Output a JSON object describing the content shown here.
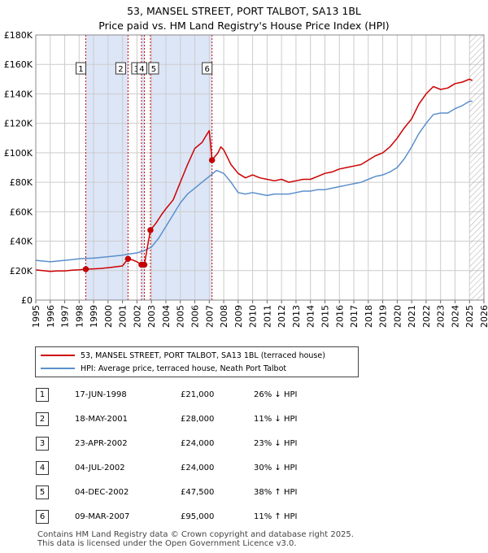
{
  "title_line1": "53, MANSEL STREET, PORT TALBOT, SA13 1BL",
  "title_line2": "Price paid vs. HM Land Registry's House Price Index (HPI)",
  "legend": {
    "property": "53, MANSEL STREET, PORT TALBOT, SA13 1BL (terraced house)",
    "hpi": "HPI: Average price, terraced house, Neath Port Talbot"
  },
  "colors": {
    "property": "#cc0000",
    "hpi": "#5b8fcc",
    "band": "#dde6f7",
    "grid": "#cccccc",
    "hatch": "#999999"
  },
  "sales": [
    {
      "num": "1",
      "date": "17-JUN-1998",
      "price": "£21,000",
      "hpi": "26% ↓ HPI"
    },
    {
      "num": "2",
      "date": "18-MAY-2001",
      "price": "£28,000",
      "hpi": "11% ↓ HPI"
    },
    {
      "num": "3",
      "date": "23-APR-2002",
      "price": "£24,000",
      "hpi": "23% ↓ HPI"
    },
    {
      "num": "4",
      "date": "04-JUL-2002",
      "price": "£24,000",
      "hpi": "30% ↓ HPI"
    },
    {
      "num": "5",
      "date": "04-DEC-2002",
      "price": "£47,500",
      "hpi": "38% ↑ HPI"
    },
    {
      "num": "6",
      "date": "09-MAR-2007",
      "price": "£95,000",
      "hpi": "11% ↑ HPI"
    }
  ],
  "footer_line1": "Contains HM Land Registry data © Crown copyright and database right 2025.",
  "footer_line2": "This data is licensed under the Open Government Licence v3.0.",
  "chart_data": {
    "type": "line",
    "title": "53, MANSEL STREET, PORT TALBOT, SA13 1BL",
    "subtitle": "Price paid vs. HM Land Registry's House Price Index (HPI)",
    "xlabel": "",
    "ylabel": "",
    "xlim": [
      1995,
      2026
    ],
    "ylim": [
      0,
      180000
    ],
    "x_ticks": [
      1995,
      1996,
      1997,
      1998,
      1999,
      2000,
      2001,
      2002,
      2003,
      2004,
      2005,
      2006,
      2007,
      2008,
      2009,
      2010,
      2011,
      2012,
      2013,
      2014,
      2015,
      2016,
      2017,
      2018,
      2019,
      2020,
      2021,
      2022,
      2023,
      2024,
      2025,
      2026
    ],
    "y_ticks": [
      {
        "value": 0,
        "label": "£0"
      },
      {
        "value": 20000,
        "label": "£20K"
      },
      {
        "value": 40000,
        "label": "£40K"
      },
      {
        "value": 60000,
        "label": "£60K"
      },
      {
        "value": 80000,
        "label": "£80K"
      },
      {
        "value": 100000,
        "label": "£100K"
      },
      {
        "value": 120000,
        "label": "£120K"
      },
      {
        "value": 140000,
        "label": "£140K"
      },
      {
        "value": 160000,
        "label": "£160K"
      },
      {
        "value": 180000,
        "label": "£180K"
      }
    ],
    "grid": true,
    "shaded_ranges": [
      [
        1998.46,
        2001.38
      ],
      [
        2002.31,
        2002.51
      ],
      [
        2002.93,
        2007.19
      ]
    ],
    "future_hatch_from": 2025.0,
    "sale_markers": [
      {
        "num": "1",
        "x": 1998.46,
        "value": 21000
      },
      {
        "num": "2",
        "x": 2001.38,
        "value": 28000
      },
      {
        "num": "3",
        "x": 2002.31,
        "value": 24000
      },
      {
        "num": "4",
        "x": 2002.51,
        "value": 24000
      },
      {
        "num": "5",
        "x": 2002.93,
        "value": 47500
      },
      {
        "num": "6",
        "x": 2007.19,
        "value": 95000
      }
    ],
    "series": [
      {
        "name": "53, MANSEL STREET, PORT TALBOT, SA13 1BL (terraced house)",
        "points": [
          [
            1995.0,
            20500
          ],
          [
            1995.5,
            20000
          ],
          [
            1996.0,
            19500
          ],
          [
            1996.5,
            19800
          ],
          [
            1997.0,
            19800
          ],
          [
            1997.5,
            20300
          ],
          [
            1998.0,
            20600
          ],
          [
            1998.46,
            21000
          ],
          [
            1999.0,
            21200
          ],
          [
            1999.5,
            21500
          ],
          [
            2000.0,
            22000
          ],
          [
            2000.5,
            22600
          ],
          [
            2001.0,
            23200
          ],
          [
            2001.38,
            28000
          ],
          [
            2001.7,
            27200
          ],
          [
            2002.0,
            26000
          ],
          [
            2002.31,
            24000
          ],
          [
            2002.51,
            24000
          ],
          [
            2002.93,
            47500
          ],
          [
            2003.3,
            52000
          ],
          [
            2003.7,
            58000
          ],
          [
            2004.0,
            62000
          ],
          [
            2004.5,
            68000
          ],
          [
            2005.0,
            80000
          ],
          [
            2005.5,
            92000
          ],
          [
            2006.0,
            103000
          ],
          [
            2006.5,
            107000
          ],
          [
            2006.8,
            112000
          ],
          [
            2007.0,
            115000
          ],
          [
            2007.19,
            95000
          ],
          [
            2007.6,
            100000
          ],
          [
            2007.8,
            104000
          ],
          [
            2008.0,
            102000
          ],
          [
            2008.5,
            92000
          ],
          [
            2009.0,
            86000
          ],
          [
            2009.5,
            83000
          ],
          [
            2010.0,
            85000
          ],
          [
            2010.5,
            83000
          ],
          [
            2011.0,
            82000
          ],
          [
            2011.5,
            81000
          ],
          [
            2012.0,
            82000
          ],
          [
            2012.5,
            80000
          ],
          [
            2013.0,
            81000
          ],
          [
            2013.5,
            82000
          ],
          [
            2014.0,
            82000
          ],
          [
            2014.5,
            84000
          ],
          [
            2015.0,
            86000
          ],
          [
            2015.5,
            87000
          ],
          [
            2016.0,
            89000
          ],
          [
            2016.5,
            90000
          ],
          [
            2017.0,
            91000
          ],
          [
            2017.5,
            92000
          ],
          [
            2018.0,
            95000
          ],
          [
            2018.5,
            98000
          ],
          [
            2019.0,
            100000
          ],
          [
            2019.5,
            104000
          ],
          [
            2020.0,
            110000
          ],
          [
            2020.5,
            117000
          ],
          [
            2021.0,
            123000
          ],
          [
            2021.5,
            133000
          ],
          [
            2022.0,
            140000
          ],
          [
            2022.5,
            145000
          ],
          [
            2023.0,
            143000
          ],
          [
            2023.5,
            144000
          ],
          [
            2024.0,
            147000
          ],
          [
            2024.5,
            148000
          ],
          [
            2025.0,
            150000
          ],
          [
            2025.2,
            149000
          ]
        ]
      },
      {
        "name": "HPI: Average price, terraced house, Neath Port Talbot",
        "points": [
          [
            1995.0,
            27000
          ],
          [
            1995.5,
            26500
          ],
          [
            1996.0,
            26000
          ],
          [
            1996.5,
            26500
          ],
          [
            1997.0,
            27000
          ],
          [
            1997.5,
            27500
          ],
          [
            1998.0,
            28000
          ],
          [
            1998.46,
            28300
          ],
          [
            1999.0,
            28500
          ],
          [
            1999.5,
            29000
          ],
          [
            2000.0,
            29500
          ],
          [
            2000.5,
            30000
          ],
          [
            2001.0,
            30500
          ],
          [
            2001.38,
            31200
          ],
          [
            2002.0,
            32000
          ],
          [
            2002.5,
            33500
          ],
          [
            2003.0,
            36000
          ],
          [
            2003.5,
            42000
          ],
          [
            2004.0,
            50000
          ],
          [
            2004.5,
            58000
          ],
          [
            2005.0,
            66000
          ],
          [
            2005.5,
            72000
          ],
          [
            2006.0,
            76000
          ],
          [
            2006.5,
            80000
          ],
          [
            2007.0,
            84000
          ],
          [
            2007.19,
            85500
          ],
          [
            2007.5,
            88000
          ],
          [
            2008.0,
            86000
          ],
          [
            2008.5,
            80000
          ],
          [
            2009.0,
            73000
          ],
          [
            2009.5,
            72000
          ],
          [
            2010.0,
            73000
          ],
          [
            2010.5,
            72000
          ],
          [
            2011.0,
            71000
          ],
          [
            2011.5,
            72000
          ],
          [
            2012.0,
            72000
          ],
          [
            2012.5,
            72000
          ],
          [
            2013.0,
            73000
          ],
          [
            2013.5,
            74000
          ],
          [
            2014.0,
            74000
          ],
          [
            2014.5,
            75000
          ],
          [
            2015.0,
            75000
          ],
          [
            2015.5,
            76000
          ],
          [
            2016.0,
            77000
          ],
          [
            2016.5,
            78000
          ],
          [
            2017.0,
            79000
          ],
          [
            2017.5,
            80000
          ],
          [
            2018.0,
            82000
          ],
          [
            2018.5,
            84000
          ],
          [
            2019.0,
            85000
          ],
          [
            2019.5,
            87000
          ],
          [
            2020.0,
            90000
          ],
          [
            2020.5,
            96000
          ],
          [
            2021.0,
            104000
          ],
          [
            2021.5,
            113000
          ],
          [
            2022.0,
            120000
          ],
          [
            2022.5,
            126000
          ],
          [
            2023.0,
            127000
          ],
          [
            2023.5,
            127000
          ],
          [
            2024.0,
            130000
          ],
          [
            2024.5,
            132000
          ],
          [
            2025.0,
            135000
          ],
          [
            2025.2,
            135000
          ]
        ]
      }
    ]
  }
}
